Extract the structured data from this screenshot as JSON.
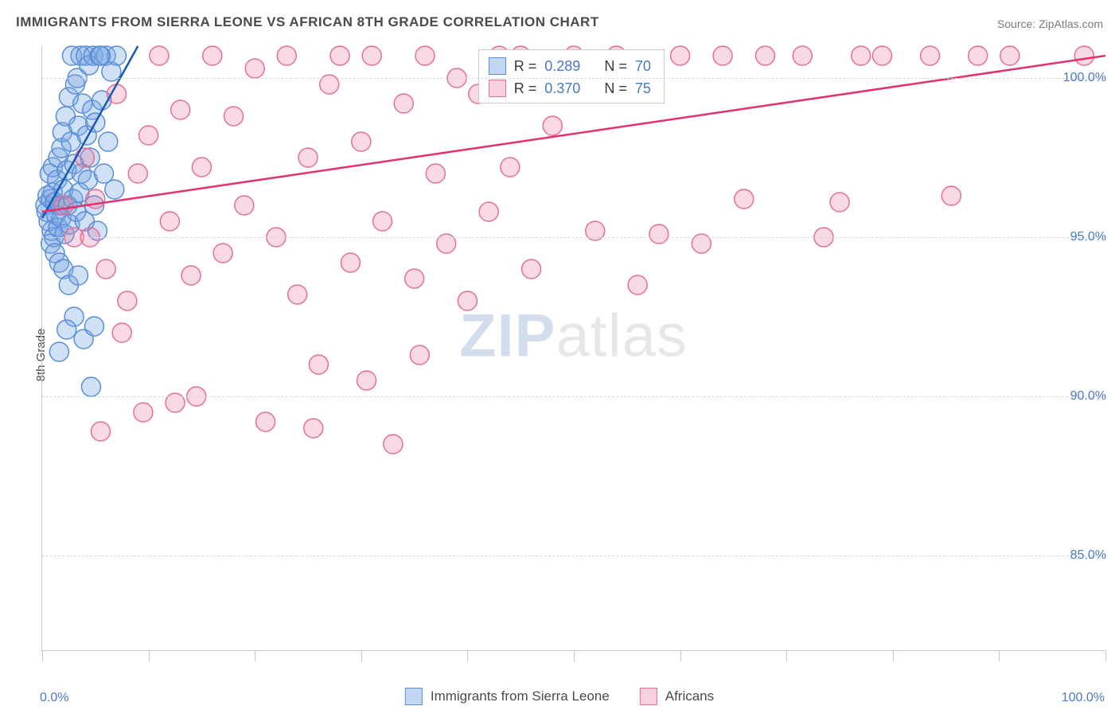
{
  "title": "IMMIGRANTS FROM SIERRA LEONE VS AFRICAN 8TH GRADE CORRELATION CHART",
  "source_label": "Source:",
  "source_value": "ZipAtlas.com",
  "ylabel": "8th Grade",
  "watermark_a": "ZIP",
  "watermark_b": "atlas",
  "chart": {
    "type": "scatter",
    "background_color": "#ffffff",
    "grid_color": "#d8d8d8",
    "axis_color": "#c9c9c9",
    "tick_label_color": "#4a78c4",
    "text_color": "#4a4a4a",
    "title_fontsize": 17,
    "tick_fontsize": 16,
    "legend_fontsize": 17,
    "stats_fontsize": 18,
    "marker_radius": 12,
    "marker_stroke_width": 1.5,
    "trend_line_width": 2.5,
    "xlim": [
      0,
      100
    ],
    "ylim": [
      82,
      101
    ],
    "x_ticks": [
      0,
      10,
      20,
      30,
      40,
      50,
      60,
      70,
      80,
      90,
      100
    ],
    "x_tick_labels": {
      "0": "0.0%",
      "100": "100.0%"
    },
    "y_gridlines": [
      85,
      90,
      95,
      100
    ],
    "y_tick_labels": {
      "85": "85.0%",
      "90": "90.0%",
      "95": "95.0%",
      "100": "100.0%"
    },
    "series": [
      {
        "id": "sierra_leone",
        "label": "Immigrants from Sierra Leone",
        "fill": "rgba(120,165,225,0.35)",
        "stroke": "#5a8fd6",
        "swatch_fill": "rgba(120,165,225,0.45)",
        "swatch_border": "#5a8fd6",
        "trend_color": "#1858b8",
        "R": "0.289",
        "N": "70",
        "trend": {
          "x1": 0,
          "y1": 95.6,
          "x2": 9,
          "y2": 101
        },
        "points": [
          [
            0.3,
            96.0
          ],
          [
            0.4,
            95.8
          ],
          [
            0.5,
            96.3
          ],
          [
            0.6,
            95.5
          ],
          [
            0.7,
            97.0
          ],
          [
            0.8,
            96.2
          ],
          [
            0.8,
            94.8
          ],
          [
            0.9,
            95.2
          ],
          [
            1.0,
            96.4
          ],
          [
            1.0,
            97.2
          ],
          [
            1.1,
            95.0
          ],
          [
            1.2,
            96.1
          ],
          [
            1.2,
            94.5
          ],
          [
            1.3,
            95.7
          ],
          [
            1.4,
            96.8
          ],
          [
            1.5,
            97.5
          ],
          [
            1.5,
            95.3
          ],
          [
            1.6,
            94.2
          ],
          [
            1.7,
            96.0
          ],
          [
            1.8,
            97.8
          ],
          [
            1.8,
            95.6
          ],
          [
            1.9,
            98.3
          ],
          [
            2.0,
            96.5
          ],
          [
            2.0,
            94.0
          ],
          [
            2.1,
            95.1
          ],
          [
            2.2,
            98.8
          ],
          [
            2.3,
            97.1
          ],
          [
            2.4,
            96.0
          ],
          [
            2.5,
            99.4
          ],
          [
            2.5,
            93.5
          ],
          [
            2.6,
            95.4
          ],
          [
            2.7,
            98.0
          ],
          [
            2.8,
            100.7
          ],
          [
            2.9,
            96.2
          ],
          [
            3.0,
            97.3
          ],
          [
            3.0,
            92.5
          ],
          [
            3.1,
            99.8
          ],
          [
            3.2,
            95.8
          ],
          [
            3.3,
            100.0
          ],
          [
            3.4,
            98.5
          ],
          [
            3.5,
            96.4
          ],
          [
            3.6,
            100.7
          ],
          [
            3.7,
            97.0
          ],
          [
            3.8,
            99.2
          ],
          [
            3.9,
            91.8
          ],
          [
            4.0,
            95.5
          ],
          [
            4.1,
            100.7
          ],
          [
            4.2,
            98.2
          ],
          [
            4.3,
            96.8
          ],
          [
            4.4,
            100.4
          ],
          [
            4.5,
            97.5
          ],
          [
            4.6,
            90.3
          ],
          [
            4.7,
            99.0
          ],
          [
            4.8,
            100.7
          ],
          [
            4.9,
            96.0
          ],
          [
            5.0,
            98.6
          ],
          [
            5.2,
            95.2
          ],
          [
            5.4,
            100.7
          ],
          [
            5.6,
            99.3
          ],
          [
            5.8,
            97.0
          ],
          [
            6.0,
            100.7
          ],
          [
            6.2,
            98.0
          ],
          [
            6.5,
            100.2
          ],
          [
            6.8,
            96.5
          ],
          [
            7.0,
            100.7
          ],
          [
            2.3,
            92.1
          ],
          [
            1.6,
            91.4
          ],
          [
            3.4,
            93.8
          ],
          [
            4.9,
            92.2
          ],
          [
            5.5,
            100.7
          ]
        ]
      },
      {
        "id": "africans",
        "label": "Africans",
        "fill": "rgba(235,120,160,0.28)",
        "stroke": "#e56f99",
        "swatch_fill": "rgba(240,150,180,0.45)",
        "swatch_border": "#e56f99",
        "trend_color": "#e3326b",
        "R": "0.370",
        "N": "75",
        "trend": {
          "x1": 0,
          "y1": 95.8,
          "x2": 100,
          "y2": 100.7
        },
        "points": [
          [
            2.0,
            96.0
          ],
          [
            3.0,
            95.0
          ],
          [
            4.0,
            97.5
          ],
          [
            5.0,
            96.2
          ],
          [
            6.0,
            94.0
          ],
          [
            7.0,
            99.5
          ],
          [
            8.0,
            93.0
          ],
          [
            9.0,
            97.0
          ],
          [
            10.0,
            98.2
          ],
          [
            11.0,
            100.7
          ],
          [
            12.0,
            95.5
          ],
          [
            13.0,
            99.0
          ],
          [
            14.0,
            93.8
          ],
          [
            15.0,
            97.2
          ],
          [
            16.0,
            100.7
          ],
          [
            17.0,
            94.5
          ],
          [
            18.0,
            98.8
          ],
          [
            19.0,
            96.0
          ],
          [
            20.0,
            100.3
          ],
          [
            21.0,
            89.2
          ],
          [
            22.0,
            95.0
          ],
          [
            23.0,
            100.7
          ],
          [
            24.0,
            93.2
          ],
          [
            25.0,
            97.5
          ],
          [
            26.0,
            91.0
          ],
          [
            27.0,
            99.8
          ],
          [
            28.0,
            100.7
          ],
          [
            29.0,
            94.2
          ],
          [
            30.0,
            98.0
          ],
          [
            31.0,
            100.7
          ],
          [
            32.0,
            95.5
          ],
          [
            33.0,
            88.5
          ],
          [
            34.0,
            99.2
          ],
          [
            35.0,
            93.7
          ],
          [
            36.0,
            100.7
          ],
          [
            37.0,
            97.0
          ],
          [
            38.0,
            94.8
          ],
          [
            39.0,
            100.0
          ],
          [
            40.0,
            93.0
          ],
          [
            41.0,
            99.5
          ],
          [
            42.0,
            95.8
          ],
          [
            43.0,
            100.7
          ],
          [
            44.0,
            97.2
          ],
          [
            45.0,
            100.7
          ],
          [
            46.0,
            94.0
          ],
          [
            48.0,
            98.5
          ],
          [
            50.0,
            100.7
          ],
          [
            52.0,
            95.2
          ],
          [
            54.0,
            100.7
          ],
          [
            56.0,
            93.5
          ],
          [
            58.0,
            95.1
          ],
          [
            60.0,
            100.7
          ],
          [
            62.0,
            94.8
          ],
          [
            64.0,
            100.7
          ],
          [
            66.0,
            96.2
          ],
          [
            68.0,
            100.7
          ],
          [
            71.5,
            100.7
          ],
          [
            73.5,
            95.0
          ],
          [
            75.0,
            96.1
          ],
          [
            77.0,
            100.7
          ],
          [
            79.0,
            100.7
          ],
          [
            83.5,
            100.7
          ],
          [
            85.5,
            96.3
          ],
          [
            88.0,
            100.7
          ],
          [
            91.0,
            100.7
          ],
          [
            98.0,
            100.7
          ],
          [
            12.5,
            89.8
          ],
          [
            14.5,
            90.0
          ],
          [
            30.5,
            90.5
          ],
          [
            25.5,
            89.0
          ],
          [
            7.5,
            92.0
          ],
          [
            9.5,
            89.5
          ],
          [
            35.5,
            91.3
          ],
          [
            4.5,
            95.0
          ],
          [
            5.5,
            88.9
          ]
        ]
      }
    ],
    "stats_box": {
      "left_pct": 41,
      "top_pct": 0.5
    },
    "legend_R_label": "R =",
    "legend_N_label": "N ="
  }
}
